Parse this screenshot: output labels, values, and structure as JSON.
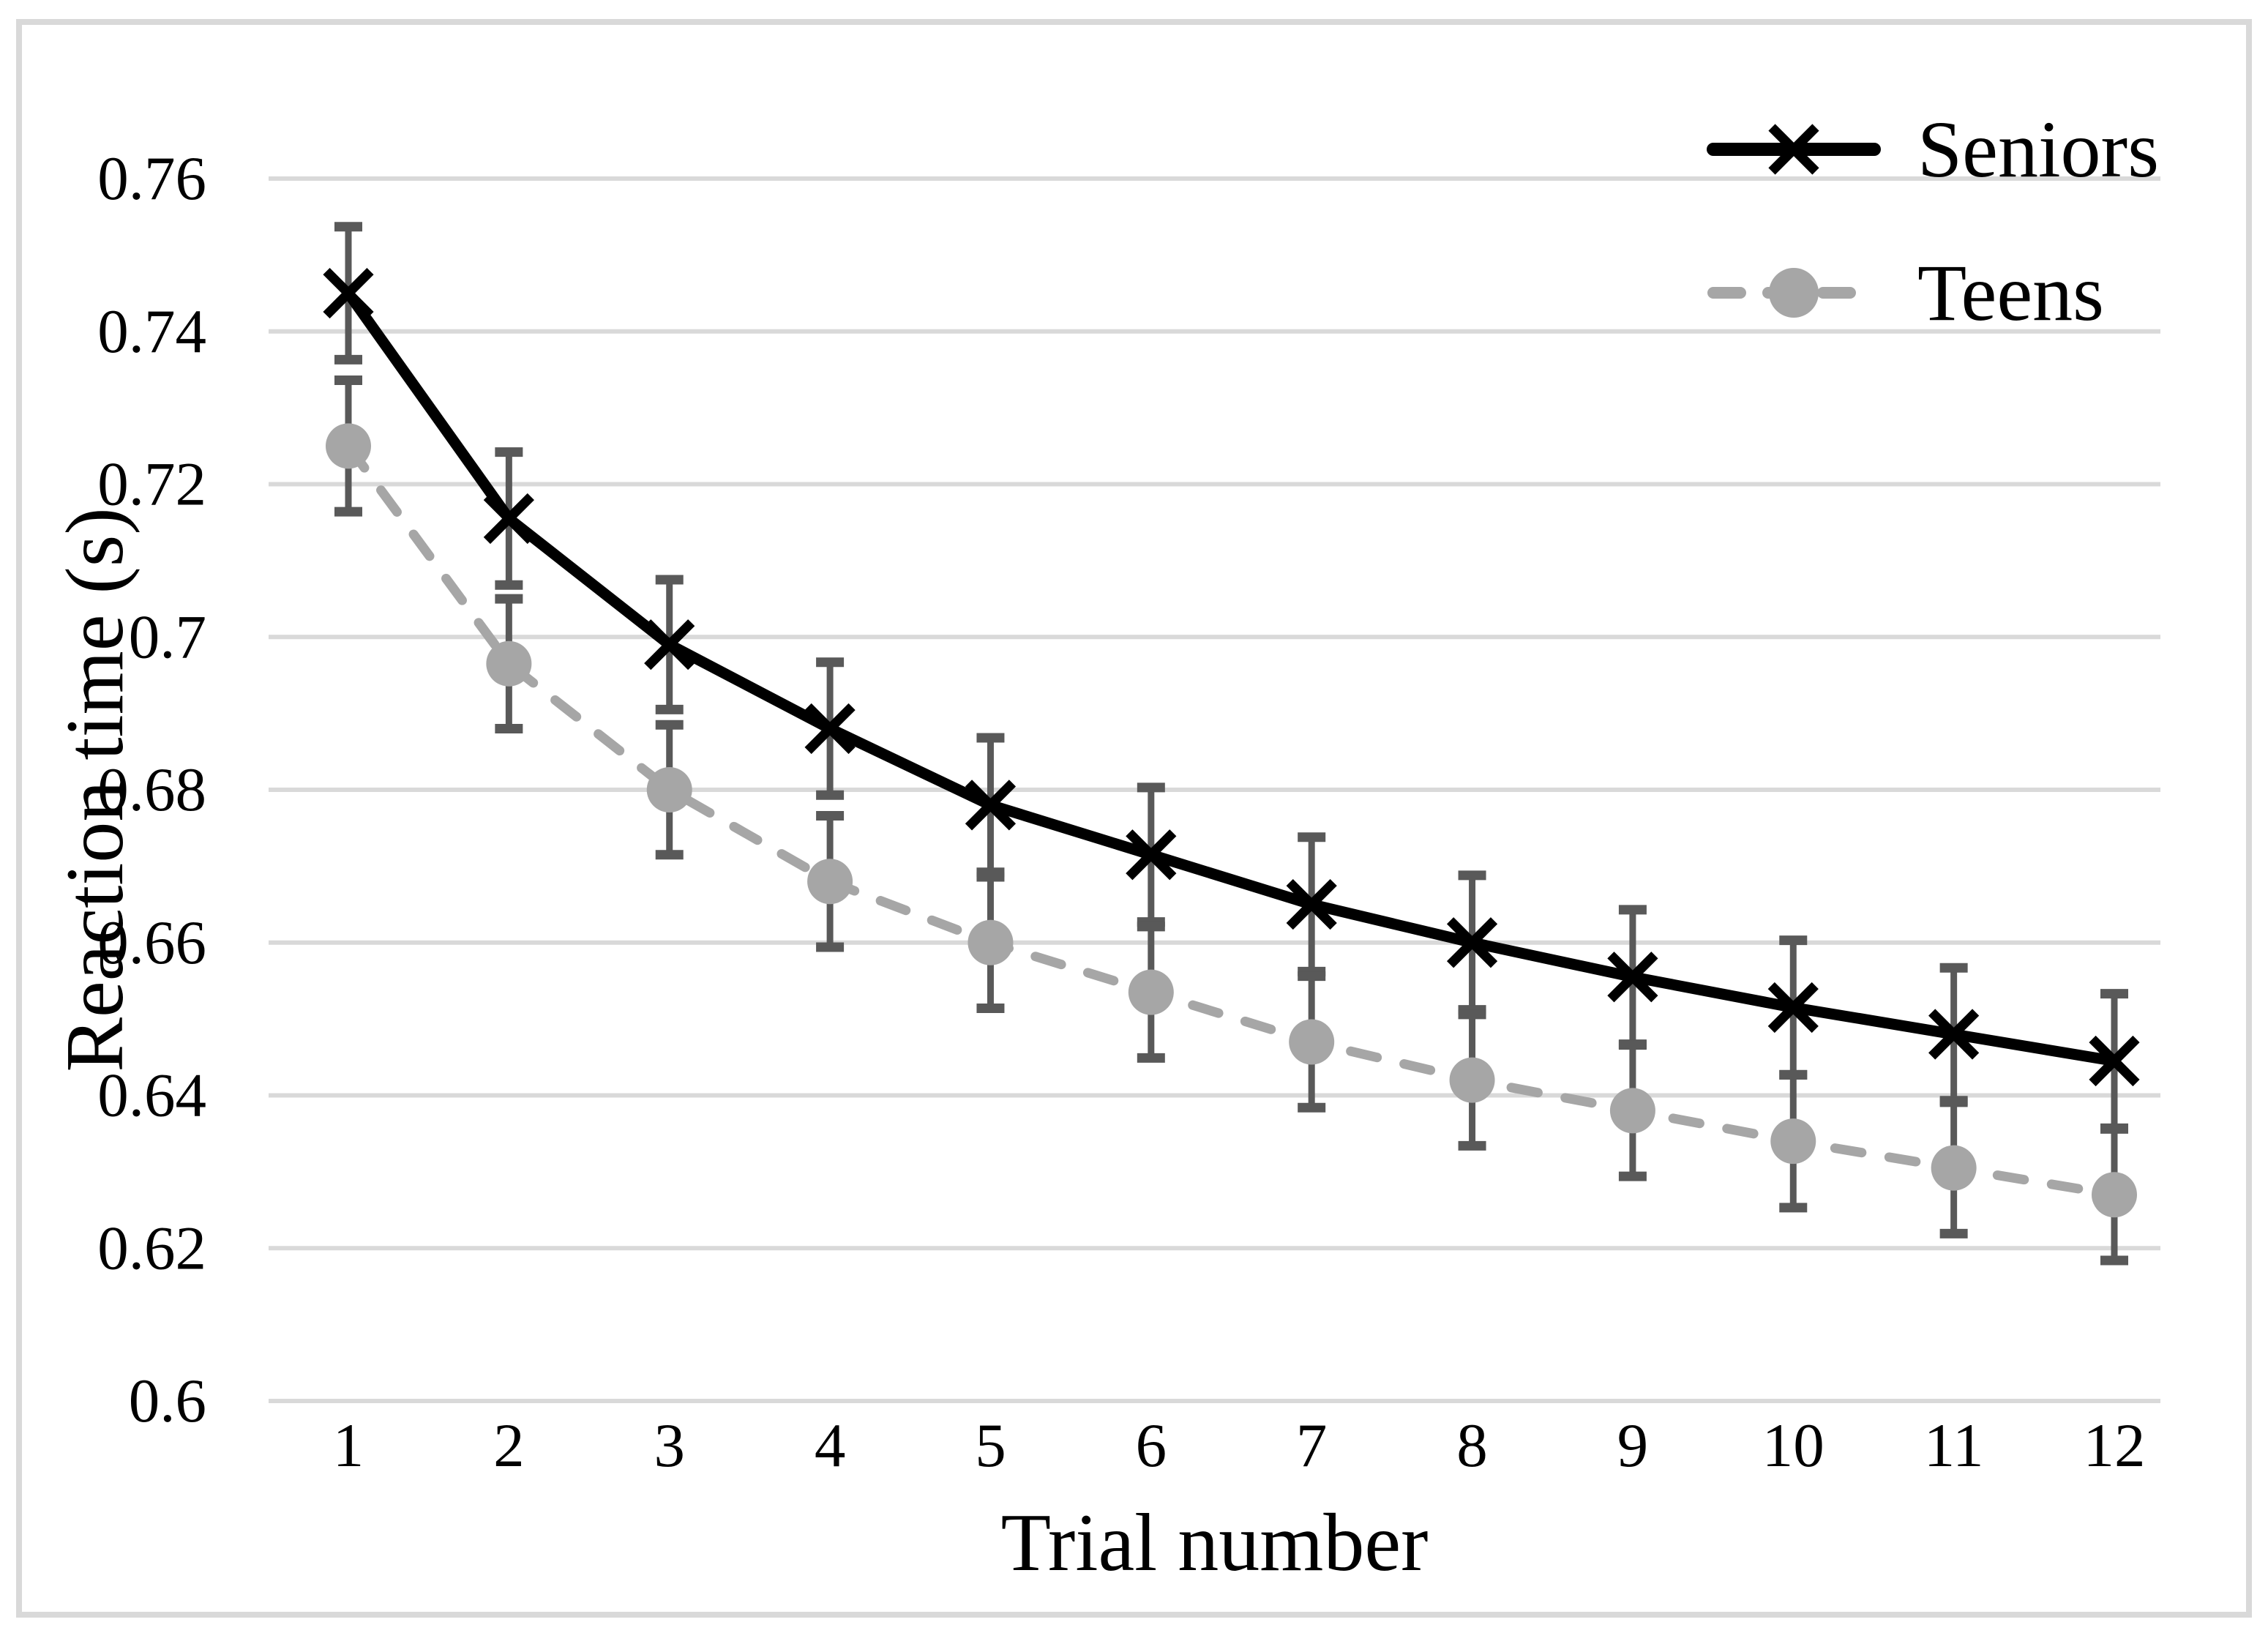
{
  "chart_data": {
    "type": "line",
    "title": "",
    "xlabel": "Trial number",
    "ylabel": "Reaction time (s)",
    "categories": [
      "1",
      "2",
      "3",
      "4",
      "5",
      "6",
      "7",
      "8",
      "9",
      "10",
      "11",
      "12"
    ],
    "x": [
      1,
      2,
      3,
      4,
      5,
      6,
      7,
      8,
      9,
      10,
      11,
      12
    ],
    "ylim": [
      0.6,
      0.76
    ],
    "ytick_step": 0.02,
    "y_ticks": [
      {
        "label": "0.76",
        "value": 0.76
      },
      {
        "label": "0.74",
        "value": 0.74
      },
      {
        "label": "0.72",
        "value": 0.72
      },
      {
        "label": "0.7",
        "value": 0.7
      },
      {
        "label": "0.68",
        "value": 0.68
      },
      {
        "label": "0.66",
        "value": 0.66
      },
      {
        "label": "0.64",
        "value": 0.64
      },
      {
        "label": "0.62",
        "value": 0.62
      },
      {
        "label": "0.6",
        "value": 0.6
      }
    ],
    "grid": true,
    "legend_position": "top-right",
    "series": [
      {
        "name": "Seniors",
        "color": "#000000",
        "style": "solid",
        "marker": "x",
        "values": [
          0.745,
          0.7155,
          0.699,
          0.688,
          0.678,
          0.6715,
          0.665,
          0.66,
          0.6555,
          0.6515,
          0.648,
          0.6445
        ],
        "error": [
          0.0087,
          0.0087,
          0.0085,
          0.0087,
          0.0088,
          0.0088,
          0.0088,
          0.0088,
          0.0088,
          0.0088,
          0.0087,
          0.0088
        ]
      },
      {
        "name": "Teens",
        "color": "#A6A6A6",
        "style": "dashed",
        "marker": "circle",
        "values": [
          0.725,
          0.6965,
          0.68,
          0.668,
          0.66,
          0.6535,
          0.647,
          0.642,
          0.638,
          0.634,
          0.6305,
          0.627
        ],
        "error": [
          0.0086,
          0.0085,
          0.0085,
          0.0086,
          0.0086,
          0.0086,
          0.0086,
          0.0086,
          0.0086,
          0.0087,
          0.0086,
          0.0086
        ]
      }
    ],
    "error_bar_color": "#595959",
    "grid_color": "#D9D9D9",
    "border_color": "#D9D9D9"
  }
}
